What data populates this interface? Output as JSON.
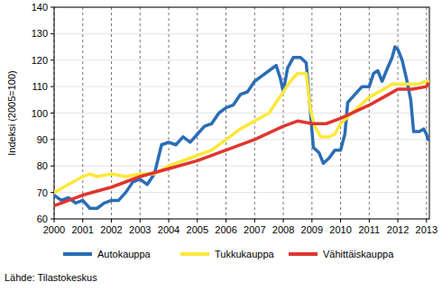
{
  "chart_data": {
    "type": "line",
    "y_label": "Indeksi (2005=100)",
    "source": "Lähde: Tilastokeskus",
    "xlim": [
      2000,
      2013.1
    ],
    "xticks": [
      2000,
      2001,
      2002,
      2003,
      2004,
      2005,
      2006,
      2007,
      2008,
      2009,
      2010,
      2011,
      2012,
      2013
    ],
    "ylim": [
      60,
      140
    ],
    "yticks": [
      60,
      70,
      80,
      90,
      100,
      110,
      120,
      130,
      140
    ],
    "grid": true,
    "legend": "bottom",
    "series": [
      {
        "name": "Autokauppa",
        "color": "#2a6db5",
        "x": [
          2000,
          2000.25,
          2000.5,
          2000.75,
          2001,
          2001.25,
          2001.5,
          2001.75,
          2002,
          2002.25,
          2002.5,
          2002.75,
          2003,
          2003.25,
          2003.5,
          2003.75,
          2004,
          2004.25,
          2004.5,
          2004.75,
          2005,
          2005.25,
          2005.5,
          2005.75,
          2006,
          2006.25,
          2006.5,
          2006.75,
          2007,
          2007.25,
          2007.5,
          2007.75,
          2007.9,
          2008,
          2008.15,
          2008.35,
          2008.6,
          2008.8,
          2008.95,
          2009.05,
          2009.25,
          2009.4,
          2009.6,
          2009.8,
          2010,
          2010.15,
          2010.25,
          2010.5,
          2010.75,
          2011,
          2011.15,
          2011.3,
          2011.45,
          2011.6,
          2011.8,
          2011.9,
          2012,
          2012.15,
          2012.3,
          2012.45,
          2012.55,
          2012.75,
          2012.9,
          2013,
          2013.05
        ],
        "values": [
          69,
          67,
          68,
          66,
          67,
          64,
          64,
          66,
          67,
          67,
          70,
          74,
          75,
          73,
          77,
          88,
          89,
          88,
          91,
          89,
          92,
          95,
          96,
          100,
          102,
          103,
          107,
          108,
          112,
          114,
          116,
          118,
          113,
          108,
          117,
          121,
          121,
          119,
          100,
          87,
          85,
          81,
          83,
          86,
          86,
          92,
          104,
          107,
          110,
          110,
          115,
          116,
          112,
          116,
          121,
          125,
          124,
          120,
          113,
          105,
          93,
          93,
          94,
          92,
          90
        ]
      },
      {
        "name": "Tukkukauppa",
        "color": "#fce83a",
        "x": [
          2000,
          2000.5,
          2001,
          2001.25,
          2001.5,
          2002,
          2002.5,
          2003,
          2003.5,
          2004,
          2004.5,
          2005,
          2005.5,
          2006,
          2006.5,
          2007,
          2007.5,
          2008,
          2008.25,
          2008.5,
          2008.8,
          2008.95,
          2009.1,
          2009.3,
          2009.6,
          2009.8,
          2010,
          2010.5,
          2011,
          2011.5,
          2011.8,
          2012,
          2012.5,
          2012.75,
          2013,
          2013.05
        ],
        "values": [
          70,
          73,
          76,
          77,
          76,
          77,
          76,
          77,
          77,
          80,
          82,
          84,
          86,
          90,
          94,
          97,
          100,
          108,
          112,
          115,
          115,
          101,
          95,
          91,
          91,
          92,
          96,
          101,
          106,
          109,
          111,
          111,
          111,
          111,
          112,
          112
        ]
      },
      {
        "name": "Vähittäiskauppa",
        "color": "#e0352f",
        "x": [
          2000,
          2001,
          2002,
          2003,
          2004,
          2005,
          2006,
          2007,
          2008,
          2008.5,
          2009,
          2009.5,
          2010,
          2011,
          2011.5,
          2012,
          2012.5,
          2013,
          2013.05
        ],
        "values": [
          65,
          69,
          72,
          76,
          79,
          82,
          86,
          90,
          95,
          97,
          96,
          96,
          98,
          103,
          106,
          109,
          109,
          110,
          111
        ]
      }
    ]
  }
}
